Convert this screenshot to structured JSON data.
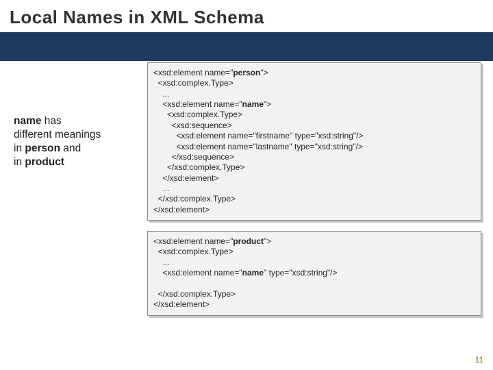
{
  "title": "Local Names in XML Schema",
  "band_color": "#1f3a5f",
  "sidebar": {
    "line1_bold": "name",
    "line1_rest": " has",
    "line2": "different meanings",
    "line3a": "in ",
    "line3b_bold": "person",
    "line3c": " and",
    "line4a": "in ",
    "line4b_bold": "product"
  },
  "code1": {
    "l1a": "<xsd:element name=\"",
    "l1b": "person",
    "l1c": "\">",
    "l2": "  <xsd:complex.Type>",
    "l3": "    ...",
    "l4a": "    <xsd:element name=\"",
    "l4b": "name",
    "l4c": "\">",
    "l5": "      <xsd:complex.Type>",
    "l6": "        <xsd:sequence>",
    "l7": "          <xsd:element name=\"firstname\" type=\"xsd:string\"/>",
    "l8": "          <xsd:element name=\"lastname\" type=\"xsd:string\"/>",
    "l9": "        </xsd:sequence>",
    "l10": "      </xsd:complex.Type>",
    "l11": "    </xsd:element>",
    "l12": "    ...",
    "l13": "  </xsd:complex.Type>",
    "l14": "</xsd:element>"
  },
  "code2": {
    "l1a": "<xsd:element name=\"",
    "l1b": "product",
    "l1c": "\">",
    "l2": "  <xsd:complex.Type>",
    "l3": "    ...",
    "l4a": "    <xsd:element name=\"",
    "l4b": "name",
    "l4c": "\" type=\"xsd:string\"/>",
    "blank": " ",
    "l5": "  </xsd:complex.Type>",
    "l6": "</xsd:element>"
  },
  "pagenum": "11"
}
